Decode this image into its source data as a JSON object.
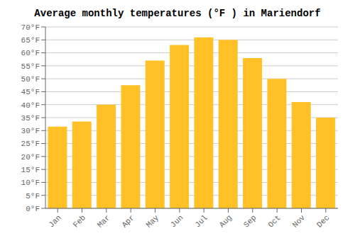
{
  "chart_data": {
    "type": "bar",
    "title": "Average monthly temperatures (°F ) in Mariendorf",
    "categories": [
      "Jan",
      "Feb",
      "Mar",
      "Apr",
      "May",
      "Jun",
      "Jul",
      "Aug",
      "Sep",
      "Oct",
      "Nov",
      "Dec"
    ],
    "values": [
      31.5,
      33.5,
      40.0,
      47.5,
      57.0,
      63.0,
      66.0,
      65.0,
      58.0,
      50.0,
      41.0,
      35.0
    ],
    "color": "#FFC125",
    "ylim": [
      0,
      70
    ],
    "yticks": [
      {
        "value": 0,
        "label": "0°F"
      },
      {
        "value": 5,
        "label": "5°F"
      },
      {
        "value": 10,
        "label": "10°F"
      },
      {
        "value": 15,
        "label": "15°F"
      },
      {
        "value": 20,
        "label": "20°F"
      },
      {
        "value": 25,
        "label": "25°F"
      },
      {
        "value": 30,
        "label": "30°F"
      },
      {
        "value": 35,
        "label": "35°F"
      },
      {
        "value": 40,
        "label": "40°F"
      },
      {
        "value": 45,
        "label": "45°F"
      },
      {
        "value": 50,
        "label": "50°F"
      },
      {
        "value": 55,
        "label": "55°F"
      },
      {
        "value": 60,
        "label": "60°F"
      },
      {
        "value": 65,
        "label": "65°F"
      },
      {
        "value": 70,
        "label": "70°F"
      }
    ],
    "grid": true
  }
}
